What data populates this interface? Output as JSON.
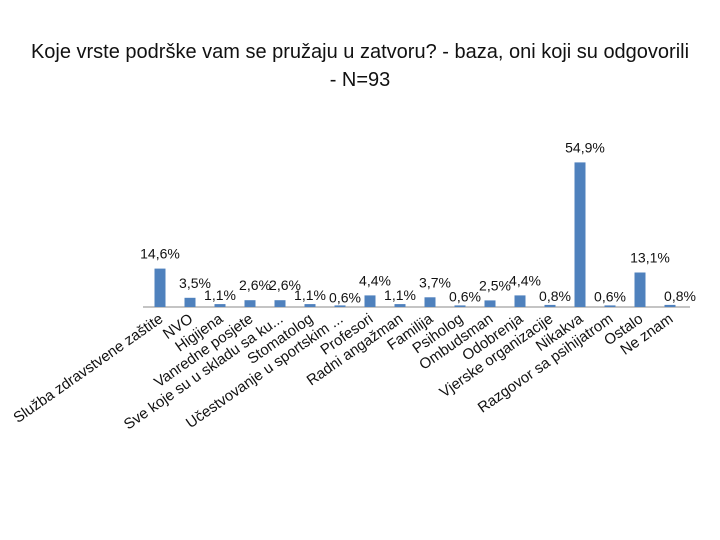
{
  "chart_data": {
    "type": "bar",
    "title": "Koje vrste podrške vam se pružaju u zatvoru? - baza, oni koji su odgovorili - N=93",
    "categories": [
      "Služba zdravstvene zaštite",
      "NVO",
      "Higijena",
      "Vanredne posjete",
      "Sve koje su u skladu sa ku...",
      "Stomatolog",
      "Učestvovanje u sportskim ...",
      "Profesori",
      "Radni angažman",
      "Familija",
      "Psiholog",
      "Ombudsman",
      "Odobrenja",
      "Vjerske organizacije",
      "Nikakva",
      "Razgovor sa psihijatrom",
      "Ostalo",
      "Ne znam"
    ],
    "values": [
      14.6,
      3.5,
      1.1,
      2.6,
      2.6,
      1.1,
      0.6,
      4.4,
      1.1,
      3.7,
      0.6,
      2.5,
      4.4,
      0.8,
      54.9,
      0.6,
      13.1,
      0.8
    ],
    "labels": [
      "14,6%",
      "3,5%",
      "1,1%",
      "2,6%",
      "2,6%",
      "1,1%",
      "0,6%",
      "4,4%",
      "1,1%",
      "3,7%",
      "0,6%",
      "2,5%",
      "4,4%",
      "0,8%",
      "54,9%",
      "0,6%",
      "13,1%",
      "0,8%"
    ],
    "ylim": [
      0,
      60
    ],
    "grid": false,
    "legend": "none",
    "bar_color": "#4f81bd"
  }
}
